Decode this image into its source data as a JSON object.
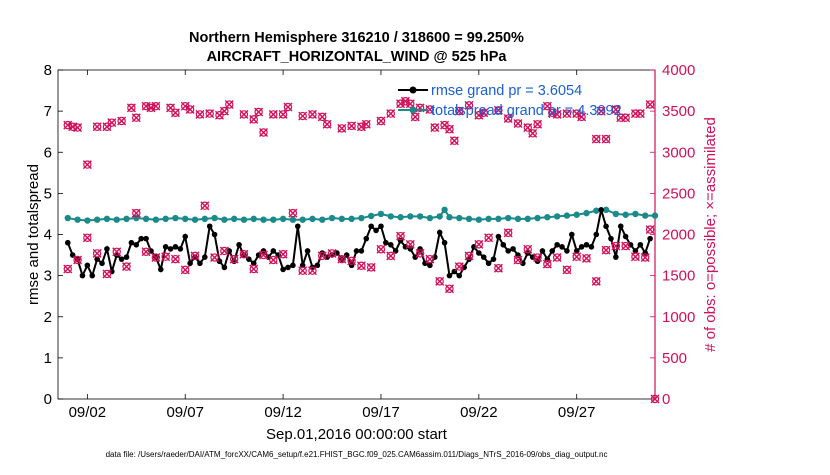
{
  "chart_data": {
    "type": "line",
    "title_line1": "Northern Hemisphere 316210 / 318600 = 99.250%",
    "title_line2": "AIRCRAFT_HORIZONTAL_WIND @ 525 hPa",
    "xlabel": "Sep.01,2016 00:00:00 start",
    "ylabel_left": "rmse and totalspread",
    "ylabel_right": "# of obs: o=possible; ×=assimilated",
    "footer": "data file: /Users/raeder/DAI/ATM_forcXX/CAM6_setup/f.e21.FHIST_BGC.f09_025.CAM6assim.011/Diags_NTrS_2016-09/obs_diag_output.nc",
    "x_tick_labels": [
      "09/02",
      "09/07",
      "09/12",
      "09/17",
      "09/22",
      "09/27"
    ],
    "x_tick_days": [
      2,
      7,
      12,
      17,
      22,
      27
    ],
    "xlim_days": [
      0.5,
      31.0
    ],
    "y_left_ticks": [
      "0",
      "1",
      "2",
      "3",
      "4",
      "5",
      "6",
      "7",
      "8"
    ],
    "ylim_left": [
      0,
      8
    ],
    "y_right_ticks": [
      "0",
      "500",
      "1000",
      "1500",
      "2000",
      "2500",
      "3000",
      "3500",
      "4000"
    ],
    "ylim_right": [
      0,
      4000
    ],
    "legend": [
      {
        "label": "rmse grand pr = 3.6054",
        "color": "#000000"
      },
      {
        "label": "totalspread grand pr = 4.3992",
        "color": "#1a8a8a"
      }
    ],
    "colors": {
      "rmse": "#000000",
      "spread": "#1a8a8a",
      "obs": "#d0105a",
      "legend_text": "#1a5fd6"
    },
    "series_rmse": [
      [
        1.0,
        3.8
      ],
      [
        1.25,
        3.5
      ],
      [
        1.5,
        3.4
      ],
      [
        1.75,
        3.0
      ],
      [
        2.0,
        3.25
      ],
      [
        2.25,
        3.0
      ],
      [
        2.5,
        3.4
      ],
      [
        2.75,
        3.3
      ],
      [
        3.0,
        3.65
      ],
      [
        3.25,
        3.1
      ],
      [
        3.5,
        3.5
      ],
      [
        3.75,
        3.4
      ],
      [
        4.0,
        3.45
      ],
      [
        4.25,
        3.8
      ],
      [
        4.5,
        3.75
      ],
      [
        4.75,
        3.9
      ],
      [
        5.0,
        3.9
      ],
      [
        5.25,
        3.6
      ],
      [
        5.5,
        3.45
      ],
      [
        5.75,
        3.15
      ],
      [
        6.0,
        3.7
      ],
      [
        6.25,
        3.65
      ],
      [
        6.5,
        3.7
      ],
      [
        6.75,
        3.65
      ],
      [
        7.0,
        3.95
      ],
      [
        7.25,
        3.3
      ],
      [
        7.5,
        3.45
      ],
      [
        7.75,
        3.3
      ],
      [
        8.0,
        3.45
      ],
      [
        8.25,
        4.2
      ],
      [
        8.5,
        4.0
      ],
      [
        8.75,
        3.35
      ],
      [
        9.0,
        3.2
      ],
      [
        9.25,
        3.6
      ],
      [
        9.5,
        3.35
      ],
      [
        9.75,
        3.75
      ],
      [
        10.0,
        3.5
      ],
      [
        10.25,
        3.4
      ],
      [
        10.5,
        3.3
      ],
      [
        10.75,
        3.5
      ],
      [
        11.0,
        3.6
      ],
      [
        11.25,
        3.45
      ],
      [
        11.5,
        3.6
      ],
      [
        11.75,
        3.5
      ],
      [
        12.0,
        3.15
      ],
      [
        12.25,
        3.2
      ],
      [
        12.5,
        3.25
      ],
      [
        12.75,
        4.2
      ],
      [
        13.0,
        3.25
      ],
      [
        13.25,
        3.6
      ],
      [
        13.5,
        3.2
      ],
      [
        13.75,
        3.25
      ],
      [
        14.0,
        3.55
      ],
      [
        14.25,
        3.45
      ],
      [
        14.5,
        3.5
      ],
      [
        14.75,
        3.55
      ],
      [
        15.0,
        3.4
      ],
      [
        15.25,
        3.5
      ],
      [
        15.5,
        3.25
      ],
      [
        15.75,
        3.6
      ],
      [
        16.0,
        3.6
      ],
      [
        16.25,
        3.9
      ],
      [
        16.5,
        4.2
      ],
      [
        16.75,
        4.1
      ],
      [
        17.0,
        4.2
      ],
      [
        17.25,
        3.8
      ],
      [
        17.5,
        3.75
      ],
      [
        17.75,
        3.6
      ],
      [
        18.0,
        3.85
      ],
      [
        18.25,
        3.7
      ],
      [
        18.5,
        3.65
      ],
      [
        18.75,
        3.45
      ],
      [
        19.0,
        3.65
      ],
      [
        19.25,
        3.3
      ],
      [
        19.5,
        3.25
      ],
      [
        19.75,
        3.45
      ],
      [
        20.0,
        4.05
      ],
      [
        20.25,
        3.8
      ],
      [
        20.5,
        3.0
      ],
      [
        20.75,
        3.1
      ],
      [
        21.0,
        3.0
      ],
      [
        21.25,
        3.2
      ],
      [
        21.5,
        3.4
      ],
      [
        21.75,
        3.7
      ],
      [
        22.0,
        3.55
      ],
      [
        22.25,
        3.45
      ],
      [
        22.5,
        3.3
      ],
      [
        22.75,
        3.4
      ],
      [
        23.0,
        3.95
      ],
      [
        23.25,
        3.75
      ],
      [
        23.5,
        3.6
      ],
      [
        23.75,
        3.65
      ],
      [
        24.0,
        3.5
      ],
      [
        24.25,
        3.3
      ],
      [
        24.5,
        3.55
      ],
      [
        24.75,
        3.45
      ],
      [
        25.0,
        3.35
      ],
      [
        25.25,
        3.6
      ],
      [
        25.5,
        3.4
      ],
      [
        25.75,
        3.6
      ],
      [
        26.0,
        3.75
      ],
      [
        26.25,
        3.7
      ],
      [
        26.5,
        3.6
      ],
      [
        26.75,
        4.0
      ],
      [
        27.0,
        3.6
      ],
      [
        27.25,
        3.7
      ],
      [
        27.5,
        3.75
      ],
      [
        27.75,
        3.7
      ],
      [
        28.0,
        4.0
      ],
      [
        28.25,
        4.6
      ],
      [
        28.5,
        4.2
      ],
      [
        28.75,
        3.9
      ],
      [
        29.0,
        3.45
      ],
      [
        29.25,
        4.2
      ],
      [
        29.5,
        3.95
      ],
      [
        29.75,
        3.75
      ],
      [
        30.0,
        3.6
      ],
      [
        30.25,
        3.75
      ],
      [
        30.5,
        3.55
      ],
      [
        30.75,
        3.9
      ]
    ],
    "series_spread": [
      [
        1.0,
        4.4
      ],
      [
        1.5,
        4.36
      ],
      [
        2.0,
        4.34
      ],
      [
        2.5,
        4.36
      ],
      [
        3.0,
        4.38
      ],
      [
        3.5,
        4.36
      ],
      [
        4.0,
        4.38
      ],
      [
        4.5,
        4.4
      ],
      [
        5.0,
        4.38
      ],
      [
        5.5,
        4.36
      ],
      [
        6.0,
        4.38
      ],
      [
        6.5,
        4.4
      ],
      [
        7.0,
        4.38
      ],
      [
        7.5,
        4.36
      ],
      [
        8.0,
        4.38
      ],
      [
        8.5,
        4.4
      ],
      [
        9.0,
        4.36
      ],
      [
        9.5,
        4.38
      ],
      [
        10.0,
        4.36
      ],
      [
        10.5,
        4.38
      ],
      [
        11.0,
        4.36
      ],
      [
        11.5,
        4.36
      ],
      [
        12.0,
        4.38
      ],
      [
        12.5,
        4.36
      ],
      [
        13.0,
        4.36
      ],
      [
        13.5,
        4.38
      ],
      [
        14.0,
        4.36
      ],
      [
        14.5,
        4.4
      ],
      [
        15.0,
        4.38
      ],
      [
        15.5,
        4.38
      ],
      [
        16.0,
        4.4
      ],
      [
        16.5,
        4.45
      ],
      [
        17.0,
        4.5
      ],
      [
        17.5,
        4.44
      ],
      [
        18.0,
        4.42
      ],
      [
        18.5,
        4.44
      ],
      [
        19.0,
        4.44
      ],
      [
        19.5,
        4.4
      ],
      [
        20.0,
        4.44
      ],
      [
        20.25,
        4.6
      ],
      [
        20.5,
        4.42
      ],
      [
        21.0,
        4.4
      ],
      [
        21.5,
        4.38
      ],
      [
        22.0,
        4.36
      ],
      [
        22.5,
        4.38
      ],
      [
        23.0,
        4.38
      ],
      [
        23.5,
        4.4
      ],
      [
        24.0,
        4.38
      ],
      [
        24.5,
        4.38
      ],
      [
        25.0,
        4.4
      ],
      [
        25.5,
        4.42
      ],
      [
        26.0,
        4.44
      ],
      [
        26.5,
        4.46
      ],
      [
        27.0,
        4.48
      ],
      [
        27.5,
        4.52
      ],
      [
        28.0,
        4.58
      ],
      [
        28.5,
        4.6
      ],
      [
        29.0,
        4.5
      ],
      [
        29.5,
        4.48
      ],
      [
        30.0,
        4.5
      ],
      [
        30.5,
        4.46
      ],
      [
        31.0,
        4.46
      ]
    ],
    "obs_high": [
      [
        1.0,
        3330
      ],
      [
        1.25,
        3310
      ],
      [
        1.5,
        3300
      ],
      [
        2.0,
        2850
      ],
      [
        2.5,
        3310
      ],
      [
        3.0,
        3310
      ],
      [
        3.25,
        3360
      ],
      [
        3.75,
        3380
      ],
      [
        4.25,
        3540
      ],
      [
        4.5,
        3420
      ],
      [
        5.0,
        3560
      ],
      [
        5.25,
        3540
      ],
      [
        5.5,
        3560
      ],
      [
        6.25,
        3540
      ],
      [
        6.5,
        3480
      ],
      [
        7.0,
        3560
      ],
      [
        7.25,
        3520
      ],
      [
        7.75,
        3460
      ],
      [
        8.25,
        3470
      ],
      [
        8.75,
        3450
      ],
      [
        9.0,
        3500
      ],
      [
        9.25,
        3580
      ],
      [
        10.0,
        3460
      ],
      [
        10.5,
        3400
      ],
      [
        10.75,
        3490
      ],
      [
        11.0,
        3240
      ],
      [
        11.5,
        3460
      ],
      [
        12.0,
        3460
      ],
      [
        12.25,
        3550
      ],
      [
        13.0,
        3440
      ],
      [
        13.5,
        3460
      ],
      [
        14.0,
        3430
      ],
      [
        14.25,
        3340
      ],
      [
        15.0,
        3290
      ],
      [
        15.5,
        3320
      ],
      [
        16.0,
        3310
      ],
      [
        16.25,
        3340
      ],
      [
        17.0,
        3380
      ],
      [
        17.5,
        3470
      ],
      [
        18.0,
        3590
      ],
      [
        18.25,
        3620
      ],
      [
        18.5,
        3590
      ],
      [
        18.75,
        3430
      ],
      [
        19.0,
        3540
      ],
      [
        19.5,
        3520
      ],
      [
        19.75,
        3300
      ],
      [
        20.25,
        3330
      ],
      [
        20.5,
        3280
      ],
      [
        20.75,
        3140
      ],
      [
        21.0,
        3500
      ],
      [
        21.5,
        3570
      ],
      [
        22.0,
        3450
      ],
      [
        22.25,
        3480
      ],
      [
        23.0,
        3510
      ],
      [
        23.5,
        3410
      ],
      [
        24.0,
        3350
      ],
      [
        24.5,
        3300
      ],
      [
        24.75,
        3230
      ],
      [
        25.0,
        3340
      ],
      [
        25.5,
        3560
      ],
      [
        25.75,
        3480
      ],
      [
        26.0,
        3460
      ],
      [
        26.5,
        3470
      ],
      [
        27.0,
        3470
      ],
      [
        27.25,
        3430
      ],
      [
        28.0,
        3160
      ],
      [
        28.25,
        3500
      ],
      [
        28.5,
        3160
      ],
      [
        29.0,
        3520
      ],
      [
        29.25,
        3420
      ],
      [
        29.5,
        3420
      ],
      [
        30.0,
        3470
      ],
      [
        30.25,
        3470
      ],
      [
        30.75,
        3580
      ]
    ],
    "obs_low": [
      [
        1.0,
        1580
      ],
      [
        1.5,
        1690
      ],
      [
        2.0,
        1960
      ],
      [
        2.5,
        1770
      ],
      [
        3.0,
        1520
      ],
      [
        3.5,
        1790
      ],
      [
        4.0,
        1610
      ],
      [
        4.5,
        2260
      ],
      [
        5.0,
        1790
      ],
      [
        5.5,
        1720
      ],
      [
        6.0,
        1730
      ],
      [
        6.5,
        1700
      ],
      [
        7.0,
        1570
      ],
      [
        7.5,
        1740
      ],
      [
        8.0,
        2350
      ],
      [
        8.5,
        1720
      ],
      [
        9.0,
        1800
      ],
      [
        9.5,
        1700
      ],
      [
        10.0,
        1760
      ],
      [
        10.5,
        1580
      ],
      [
        11.0,
        1750
      ],
      [
        11.5,
        1690
      ],
      [
        12.0,
        1760
      ],
      [
        12.5,
        2260
      ],
      [
        13.0,
        1560
      ],
      [
        13.5,
        1560
      ],
      [
        14.0,
        1740
      ],
      [
        14.5,
        1770
      ],
      [
        15.0,
        1700
      ],
      [
        15.5,
        1680
      ],
      [
        16.0,
        1620
      ],
      [
        16.5,
        1600
      ],
      [
        17.0,
        1820
      ],
      [
        17.5,
        1740
      ],
      [
        18.0,
        1980
      ],
      [
        18.5,
        1880
      ],
      [
        19.0,
        1770
      ],
      [
        19.5,
        1700
      ],
      [
        20.0,
        1430
      ],
      [
        20.5,
        1340
      ],
      [
        21.0,
        1610
      ],
      [
        21.5,
        1740
      ],
      [
        22.0,
        1880
      ],
      [
        22.5,
        1960
      ],
      [
        23.0,
        1590
      ],
      [
        23.5,
        2020
      ],
      [
        24.0,
        1690
      ],
      [
        24.5,
        1820
      ],
      [
        25.0,
        1720
      ],
      [
        25.5,
        1640
      ],
      [
        26.0,
        1720
      ],
      [
        26.5,
        1570
      ],
      [
        27.0,
        1730
      ],
      [
        27.5,
        1710
      ],
      [
        28.0,
        1430
      ],
      [
        28.5,
        1810
      ],
      [
        29.0,
        1860
      ],
      [
        29.5,
        1860
      ],
      [
        30.0,
        1730
      ],
      [
        30.5,
        1720
      ],
      [
        30.75,
        2060
      ],
      [
        31.0,
        0
      ]
    ]
  }
}
